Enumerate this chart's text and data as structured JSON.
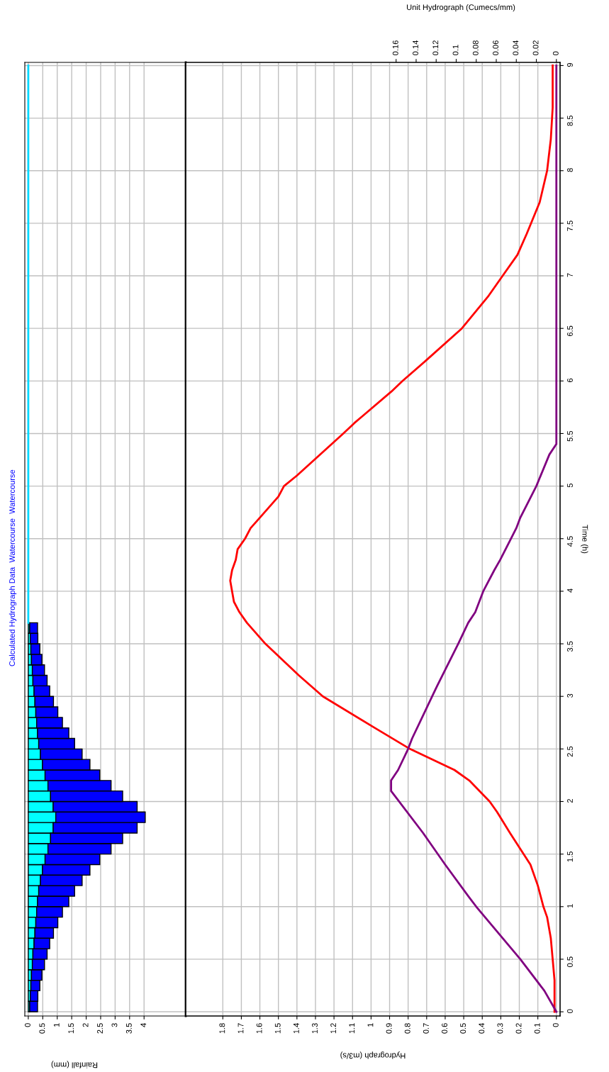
{
  "chart_data": [
    {
      "type": "bar",
      "title": "Calculated Hydrograph Data  Watercourse  Watercourse",
      "xlabel": "Rainfall (mm)",
      "orientation": "horizontal",
      "stacked": true,
      "grid": true,
      "tick_labels": "x",
      "x": [
        0.05,
        0.15,
        0.25,
        0.35,
        0.45,
        0.55,
        0.65,
        0.75,
        0.85,
        0.95,
        1.05,
        1.15,
        1.25,
        1.35,
        1.45,
        1.55,
        1.65,
        1.75,
        1.85,
        1.95,
        2.05,
        2.15,
        2.25,
        2.35,
        2.45,
        2.55,
        2.65,
        2.75,
        2.85,
        2.95,
        3.05,
        3.15,
        3.25,
        3.35,
        3.45,
        3.55,
        3.65
      ],
      "series": [
        {
          "color": "#00ffff",
          "values": [
            0.05,
            0.07,
            0.09,
            0.11,
            0.14,
            0.16,
            0.2,
            0.23,
            0.26,
            0.29,
            0.32,
            0.36,
            0.42,
            0.49,
            0.58,
            0.68,
            0.77,
            0.86,
            0.95,
            0.86,
            0.77,
            0.68,
            0.58,
            0.49,
            0.42,
            0.36,
            0.32,
            0.29,
            0.26,
            0.23,
            0.2,
            0.16,
            0.14,
            0.11,
            0.09,
            0.07,
            0.05
          ]
        },
        {
          "color": "#0000ff",
          "values": [
            0.27,
            0.26,
            0.31,
            0.36,
            0.42,
            0.49,
            0.54,
            0.64,
            0.76,
            0.89,
            1.08,
            1.24,
            1.44,
            1.64,
            1.89,
            2.18,
            2.49,
            2.9,
            3.09,
            2.9,
            2.49,
            2.18,
            1.89,
            1.64,
            1.44,
            1.24,
            1.08,
            0.89,
            0.76,
            0.64,
            0.54,
            0.49,
            0.42,
            0.36,
            0.31,
            0.26,
            0.27
          ]
        },
        {
          "type": "line",
          "color": "#00d8ff",
          "x": [
            3.7,
            9
          ],
          "values": [
            0,
            0
          ]
        }
      ],
      "xlim": [
        -0.12,
        5.44
      ],
      "xticks": [
        0,
        0.5,
        1,
        1.5,
        2,
        2.5,
        3,
        3.5,
        4
      ],
      "ylim": [
        -0.04,
        9.03
      ],
      "yticks": [
        0,
        0.5,
        1,
        1.5,
        2,
        2.5,
        3,
        3.5,
        4,
        4.5,
        5,
        5.5,
        6,
        6.5,
        7,
        7.5,
        8,
        8.5,
        9
      ]
    },
    {
      "type": "line",
      "xlabel": "Hydrograph (m3/s)",
      "ylabel": "Time (h)",
      "x2label": "Unit Hydrograph (Cumecs/mm)",
      "orientation": "horizontal",
      "grid": true,
      "series": [
        {
          "color": "#ff0000",
          "x": [
            0,
            0.3,
            0.5,
            0.7,
            0.9,
            1.0,
            1.2,
            1.4,
            1.7,
            1.9,
            2.0,
            2.2,
            2.3,
            2.5,
            2.7,
            3.0,
            3.2,
            3.5,
            3.7,
            3.8,
            3.9,
            4.0,
            4.1,
            4.2,
            4.3,
            4.4,
            4.5,
            4.6,
            4.7,
            4.9,
            5.0,
            5.1,
            5.5,
            5.6,
            5.9,
            6.0,
            6.2,
            6.5,
            6.8,
            7.0,
            7.2,
            7.4,
            7.7,
            8.0,
            8.3,
            8.6,
            9
          ],
          "values": [
            0.01,
            0.01,
            0.02,
            0.03,
            0.05,
            0.07,
            0.1,
            0.14,
            0.25,
            0.32,
            0.36,
            0.47,
            0.55,
            0.79,
            0.98,
            1.26,
            1.39,
            1.57,
            1.67,
            1.71,
            1.74,
            1.75,
            1.76,
            1.75,
            1.73,
            1.72,
            1.68,
            1.65,
            1.6,
            1.5,
            1.47,
            1.4,
            1.15,
            1.09,
            0.89,
            0.83,
            0.7,
            0.51,
            0.37,
            0.29,
            0.21,
            0.16,
            0.09,
            0.05,
            0.03,
            0.02,
            0.02
          ]
        },
        {
          "color": "#800080",
          "axis": "x2",
          "x": [
            0,
            0.2,
            0.5,
            1.0,
            1.1,
            1.4,
            1.7,
            2.1,
            2.2,
            2.3,
            2.5,
            2.6,
            3.0,
            3.1,
            3.5,
            3.7,
            3.8,
            4.0,
            4.2,
            4.3,
            4.6,
            4.7,
            5.0,
            5.3,
            5.4,
            9
          ],
          "values": [
            0,
            0.012,
            0.036,
            0.08,
            0.088,
            0.111,
            0.133,
            0.165,
            0.165,
            0.158,
            0.148,
            0.144,
            0.124,
            0.119,
            0.098,
            0.088,
            0.081,
            0.073,
            0.062,
            0.056,
            0.04,
            0.036,
            0.02,
            0.007,
            0,
            0
          ]
        }
      ],
      "xlim": [
        2.0,
        -0.02
      ],
      "xticks": [
        0,
        0.1,
        0.2,
        0.3,
        0.4,
        0.5,
        0.6,
        0.7,
        0.8,
        0.9,
        1,
        1.1,
        1.2,
        1.3,
        1.4,
        1.5,
        1.6,
        1.7,
        1.8
      ],
      "x2lim": [
        0.37,
        -0.0037
      ],
      "x2ticks": [
        0,
        0.02,
        0.04,
        0.06,
        0.08,
        0.1,
        0.12,
        0.14,
        0.16
      ],
      "ylim": [
        -0.04,
        9.03
      ],
      "yticks": [
        0,
        0.5,
        1,
        1.5,
        2,
        2.5,
        3,
        3.5,
        4,
        4.5,
        5,
        5.5,
        6,
        6.5,
        7,
        7.5,
        8,
        8.5,
        9
      ]
    }
  ]
}
